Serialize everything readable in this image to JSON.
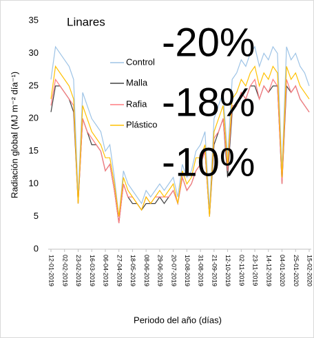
{
  "chart_data": {
    "type": "line",
    "location_label": "Linares",
    "annotations": [
      "-20%",
      "-18%",
      "-10%"
    ],
    "annotation_color": "#ff0000",
    "y_label": "Radiación global (MJ m⁻² día⁻¹)",
    "x_label": "Periodo del año (días)",
    "ylim": [
      0,
      35
    ],
    "yticks": [
      0,
      5,
      10,
      15,
      20,
      25,
      30,
      35
    ],
    "xlim": [
      "12-01-2019",
      "15-02-2020"
    ],
    "xticks": [
      "12-01-2019",
      "02-02-2019",
      "23-02-2019",
      "16-03-2019",
      "06-04-2019",
      "27-04-2019",
      "18-05-2019",
      "08-06-2019",
      "29-06-2019",
      "20-07-2019",
      "10-08-2019",
      "31-08-2019",
      "21-09-2019",
      "12-10-2019",
      "02-11-2019",
      "23-11-2019",
      "14-12-2019",
      "04-01-2020",
      "25-01-2020",
      "15-02-2020"
    ],
    "x": [
      "12-01-2019",
      "19-01-2019",
      "26-01-2019",
      "02-02-2019",
      "09-02-2019",
      "16-02-2019",
      "23-02-2019",
      "02-03-2019",
      "09-03-2019",
      "16-03-2019",
      "23-03-2019",
      "30-03-2019",
      "06-04-2019",
      "13-04-2019",
      "20-04-2019",
      "27-04-2019",
      "04-05-2019",
      "11-05-2019",
      "18-05-2019",
      "25-05-2019",
      "01-06-2019",
      "08-06-2019",
      "15-06-2019",
      "22-06-2019",
      "29-06-2019",
      "06-07-2019",
      "13-07-2019",
      "20-07-2019",
      "27-07-2019",
      "03-08-2019",
      "10-08-2019",
      "17-08-2019",
      "24-08-2019",
      "31-08-2019",
      "07-09-2019",
      "14-09-2019",
      "21-09-2019",
      "28-09-2019",
      "05-10-2019",
      "12-10-2019",
      "19-10-2019",
      "26-10-2019",
      "02-11-2019",
      "09-11-2019",
      "16-11-2019",
      "23-11-2019",
      "30-11-2019",
      "07-12-2019",
      "14-12-2019",
      "21-12-2019",
      "28-12-2019",
      "04-01-2020",
      "11-01-2020",
      "18-01-2020",
      "25-01-2020",
      "01-02-2020",
      "08-02-2020",
      "15-02-2020"
    ],
    "series": [
      {
        "name": "Control",
        "color": "#9dc3e6",
        "values": [
          26,
          31,
          30,
          29,
          28,
          26,
          8,
          24,
          22,
          20,
          19,
          18,
          15,
          16,
          11,
          5,
          12,
          10,
          9,
          8,
          7,
          9,
          8,
          9,
          10,
          9,
          10,
          11,
          8,
          13,
          11,
          12,
          15,
          16,
          18,
          6,
          20,
          22,
          24,
          14,
          26,
          27,
          29,
          28,
          30,
          31,
          28,
          30,
          29,
          31,
          30,
          12,
          31,
          29,
          30,
          28,
          27,
          25
        ]
      },
      {
        "name": "Malla",
        "color": "#404040",
        "values": [
          21,
          25,
          25,
          24,
          23,
          21,
          7,
          20,
          18,
          16,
          16,
          15,
          12,
          13,
          9,
          4,
          10,
          8,
          7,
          7,
          6,
          7,
          7,
          7,
          8,
          7,
          8,
          9,
          7,
          11,
          9,
          10,
          12,
          13,
          15,
          5,
          16,
          18,
          20,
          11,
          21,
          22,
          24,
          23,
          25,
          25,
          23,
          25,
          24,
          25,
          25,
          10,
          25,
          24,
          25,
          23,
          22,
          21
        ]
      },
      {
        "name": "Rafia",
        "color": "#ff7c80",
        "values": [
          22,
          26,
          25,
          24,
          23,
          22,
          7,
          20,
          18,
          17,
          16,
          15,
          12,
          13,
          9,
          4,
          10,
          8,
          8,
          7,
          6,
          8,
          7,
          8,
          8,
          8,
          8,
          9,
          7,
          11,
          9,
          10,
          12,
          13,
          15,
          5,
          17,
          18,
          20,
          12,
          22,
          22,
          24,
          23,
          25,
          26,
          23,
          25,
          24,
          26,
          25,
          10,
          26,
          24,
          25,
          23,
          22,
          21
        ]
      },
      {
        "name": "Plástico",
        "color": "#ffc000",
        "values": [
          23,
          28,
          27,
          26,
          25,
          23,
          7,
          22,
          20,
          18,
          17,
          16,
          14,
          14,
          10,
          5,
          11,
          9,
          8,
          7,
          6,
          8,
          7,
          8,
          9,
          8,
          9,
          10,
          7,
          12,
          10,
          11,
          14,
          14,
          16,
          5,
          18,
          20,
          22,
          13,
          23,
          24,
          26,
          25,
          27,
          28,
          25,
          27,
          26,
          28,
          27,
          11,
          28,
          26,
          27,
          25,
          24,
          23
        ]
      }
    ]
  }
}
